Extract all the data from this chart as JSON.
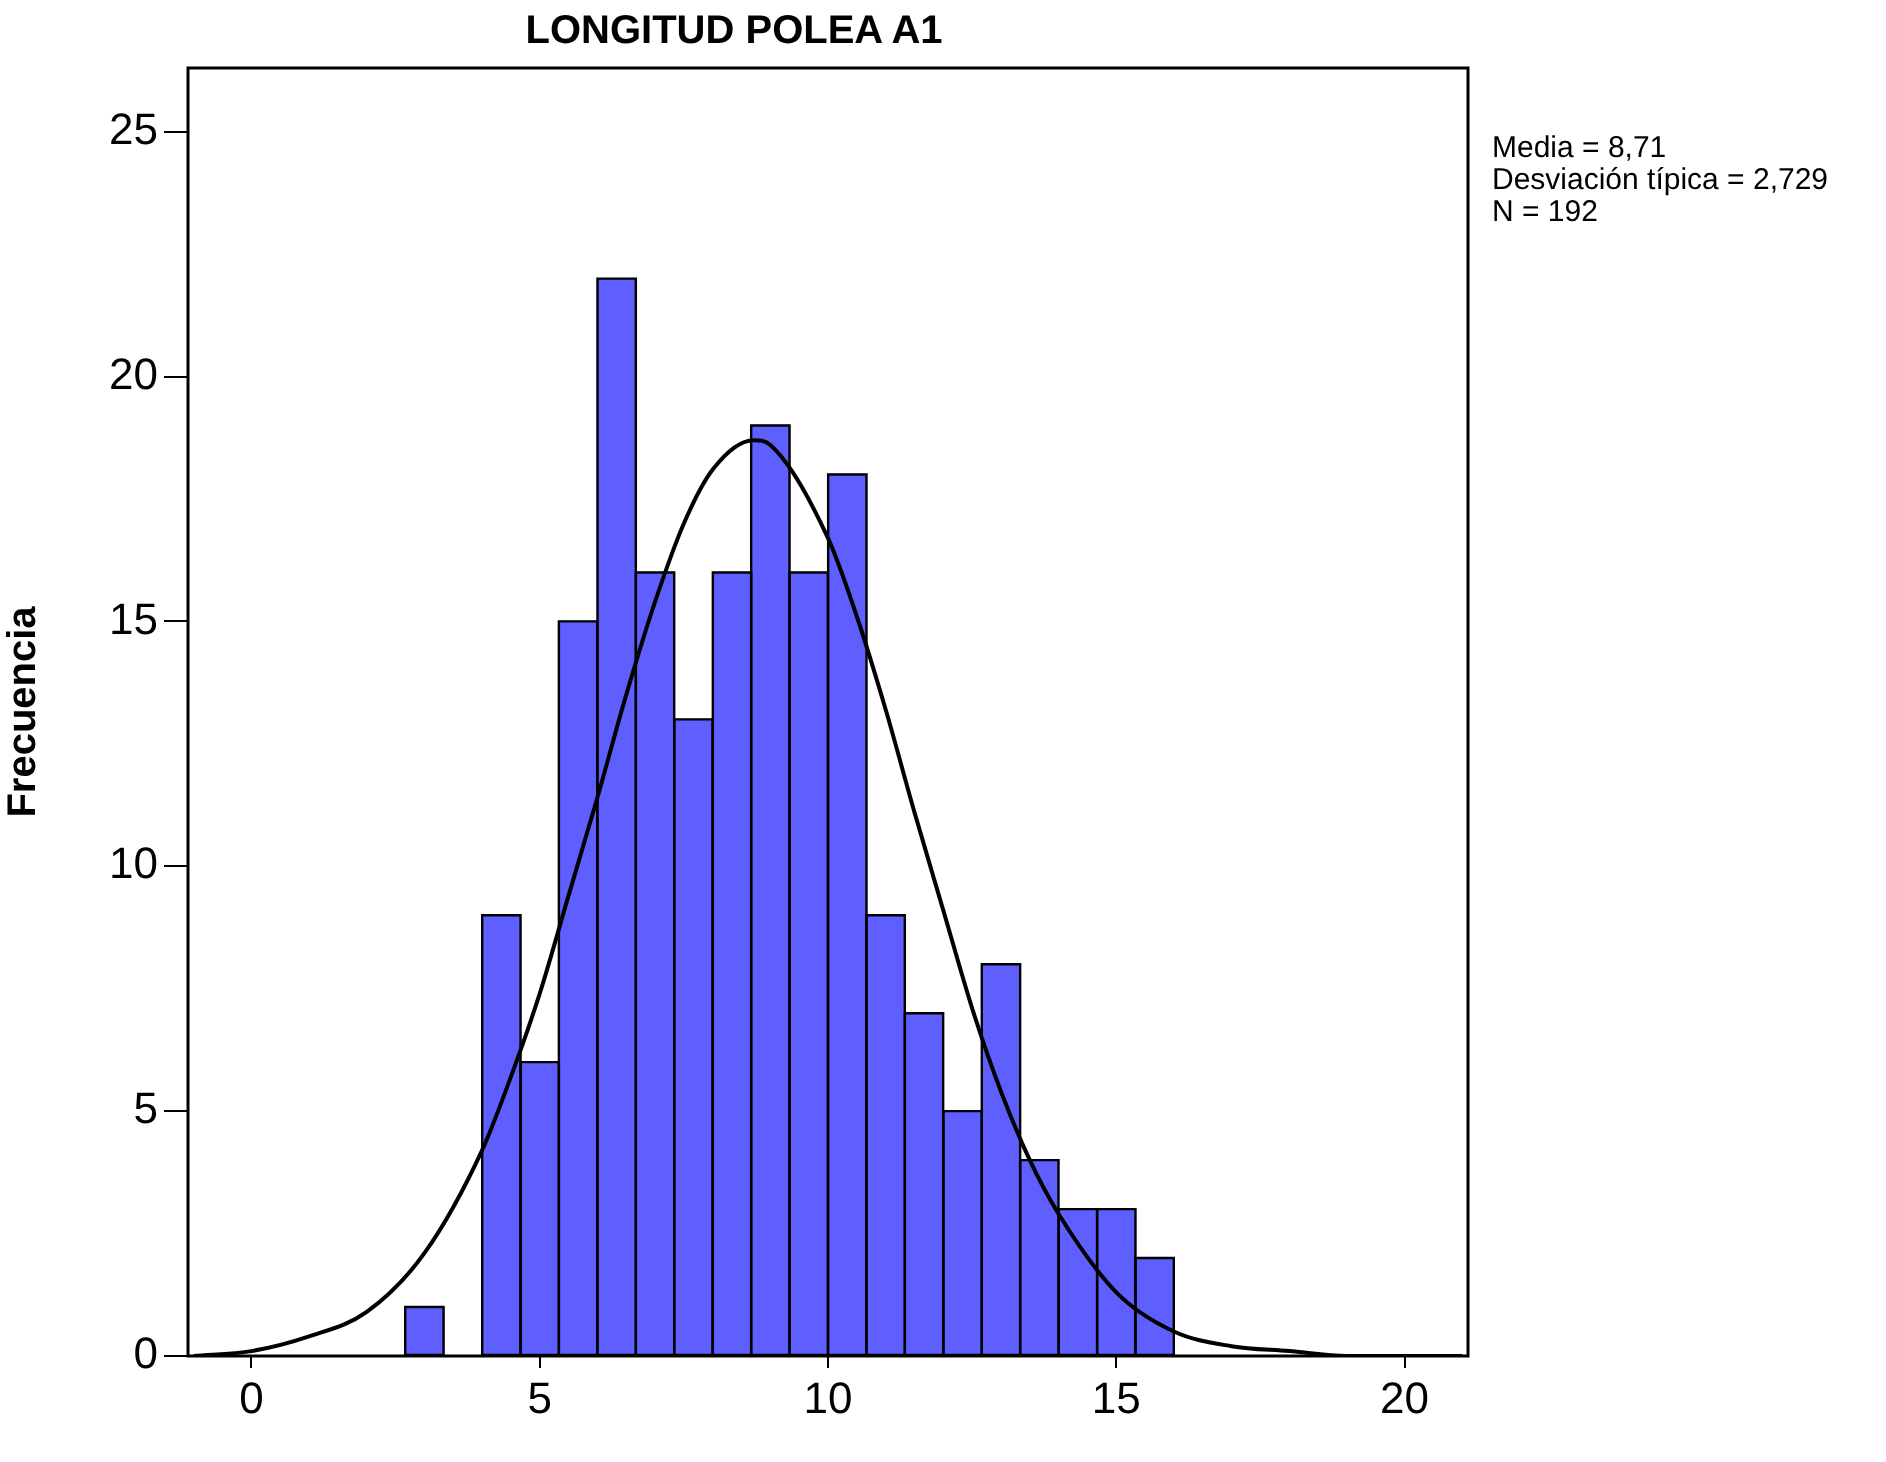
{
  "chart_data": {
    "type": "histogram",
    "title": "LONGITUD POLEA A1",
    "ylabel": "Frecuencia",
    "bins": [
      2.67,
      3.33,
      4,
      4.67,
      5.33,
      6,
      6.67,
      7.33,
      8,
      8.67,
      9.33,
      10,
      10.67,
      11.33,
      12,
      12.67,
      13.33,
      14,
      14.67,
      15.33,
      16
    ],
    "values": [
      1,
      0,
      9,
      6,
      15,
      22,
      16,
      13,
      16,
      19,
      16,
      18,
      9,
      7,
      5,
      8,
      4,
      3,
      3,
      2
    ],
    "color": "#5f5fff",
    "series": [
      {
        "type": "line",
        "color": "#000000",
        "x": [
          -1,
          0,
          1,
          2,
          3,
          4,
          4.5,
          5,
          5.5,
          6,
          6.5,
          7,
          7.5,
          8,
          8.71,
          9,
          10,
          10.5,
          11,
          11.5,
          12,
          12.5,
          13,
          13.5,
          14,
          15,
          16,
          17,
          18,
          19,
          20,
          21
        ],
        "values": [
          0,
          0.1,
          0.4,
          0.9,
          2.1,
          4.2,
          5.7,
          7.4,
          9.4,
          11.4,
          13.5,
          15.4,
          17,
          18.1,
          18.7,
          18.6,
          16.7,
          15.1,
          13.2,
          11.1,
          9.1,
          7.1,
          5.4,
          4,
          2.9,
          1.3,
          0.5,
          0.2,
          0.1,
          0,
          0,
          0
        ]
      }
    ],
    "xlim": [
      -1.1,
      21.1
    ],
    "xticks": [
      0,
      5,
      10,
      15,
      20
    ],
    "ylim": [
      0,
      26.3
    ],
    "yticks": [
      0,
      5,
      10,
      15,
      20,
      25
    ],
    "grid": false,
    "legend": false,
    "annotations": [
      "Media = 8,71",
      "Desviación típica = 2,729",
      "N = 192"
    ]
  }
}
